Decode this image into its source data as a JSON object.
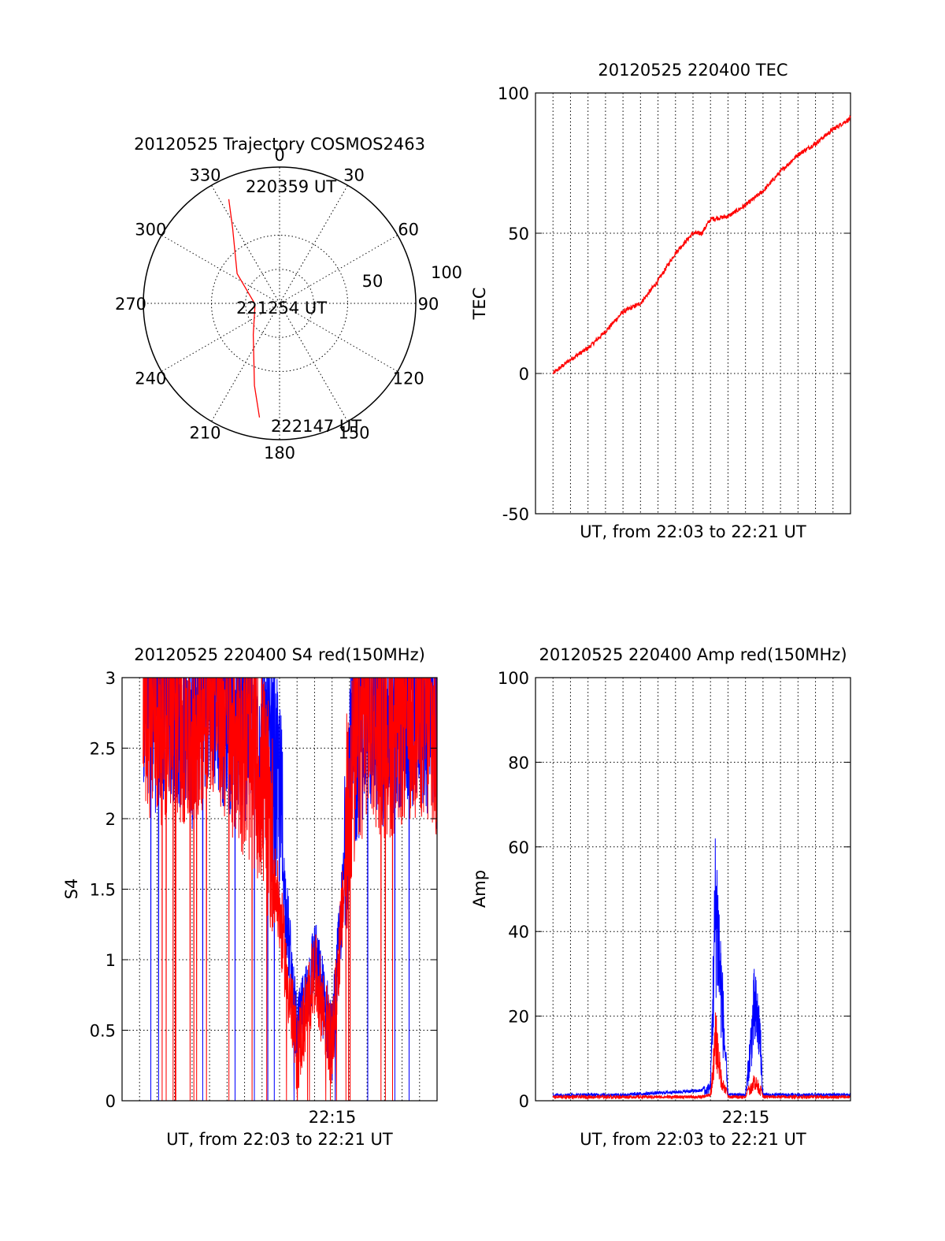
{
  "colors": {
    "red": "#ff0000",
    "blue": "#0000ff",
    "axis": "#000000"
  },
  "chart_data": [
    {
      "id": "trajectory",
      "type": "polar",
      "title": "20120525 Trajectory COSMOS2463",
      "azimuth_labels": [
        "0",
        "30",
        "60",
        "90",
        "120",
        "150",
        "180",
        "210",
        "240",
        "270",
        "300",
        "330"
      ],
      "radial_labels": [
        "50",
        "100"
      ],
      "rlim": [
        0,
        100
      ],
      "annotations": [
        "220359 UT",
        "221254 UT",
        "222147 UT"
      ],
      "series": [
        {
          "color": "red",
          "points": [
            [
              334,
              85
            ],
            [
              328,
              65
            ],
            [
              305,
              38
            ],
            [
              268,
              18
            ],
            [
              220,
              30
            ],
            [
              197,
              63
            ],
            [
              190,
              85
            ]
          ]
        }
      ]
    },
    {
      "id": "tec",
      "type": "line",
      "title": "20120525 220400 TEC",
      "xlabel": "UT, from 22:03 to 22:21 UT",
      "ylabel": "TEC",
      "ylim": [
        -50,
        100
      ],
      "yticks": [
        "100",
        "50",
        "0",
        "-50"
      ],
      "xlim": [
        0,
        18
      ],
      "series": [
        {
          "color": "red",
          "x": [
            1.0,
            2.0,
            3.0,
            4.0,
            5.0,
            6.0,
            7.0,
            8.0,
            9.0,
            9.5,
            10.0,
            11.0,
            12.0,
            13.0,
            14.0,
            15.0,
            16.0,
            17.0,
            18.0
          ],
          "y": [
            0,
            5,
            9,
            15,
            22,
            25,
            33,
            43,
            50,
            50,
            55,
            56,
            60,
            65,
            72,
            78,
            82,
            87,
            91
          ]
        }
      ]
    },
    {
      "id": "s4",
      "type": "line",
      "title": "20120525 220400 S4 red(150MHz)",
      "xlabel": "UT, from 22:03 to 22:21 UT",
      "ylabel": "S4",
      "ylim": [
        0,
        3
      ],
      "yticks": [
        "3",
        "2.5",
        "2",
        "1.5",
        "1",
        "0.5",
        "0"
      ],
      "xticklabels": [
        "22:15"
      ],
      "xlim": [
        0,
        18
      ],
      "series": [
        {
          "color": "blue",
          "x": [
            0,
            1,
            2,
            3,
            4,
            5,
            6,
            7,
            8,
            9,
            10,
            11,
            12,
            13,
            14,
            15,
            16,
            17,
            18
          ],
          "y": [
            2.6,
            2.7,
            2.5,
            2.6,
            2.4,
            2.8,
            2.5,
            2.4,
            2.3,
            1.8,
            0.3,
            0.9,
            0.3,
            2.0,
            2.6,
            2.4,
            2.5,
            2.6,
            2.3
          ]
        },
        {
          "color": "red",
          "x": [
            0,
            1,
            2,
            3,
            4,
            5,
            6,
            7,
            8,
            9,
            10,
            11,
            12,
            13,
            14,
            15,
            16,
            17,
            18
          ],
          "y": [
            2.5,
            2.6,
            2.4,
            2.5,
            2.3,
            2.7,
            2.4,
            2.2,
            2.0,
            1.2,
            0.2,
            0.8,
            0.25,
            1.9,
            2.5,
            2.3,
            2.4,
            2.5,
            2.2
          ]
        }
      ]
    },
    {
      "id": "amp",
      "type": "line",
      "title": "20120525 220400 Amp red(150MHz)",
      "xlabel": "UT, from 22:03 to 22:21 UT",
      "ylabel": "Amp",
      "ylim": [
        0,
        100
      ],
      "yticks": [
        "100",
        "80",
        "60",
        "40",
        "20",
        "0"
      ],
      "xticklabels": [
        "22:15"
      ],
      "xlim": [
        0,
        18
      ],
      "series": [
        {
          "color": "blue",
          "x": [
            1,
            5,
            9.5,
            10,
            10.3,
            10.6,
            11,
            12,
            12.5,
            12.8,
            13,
            14,
            16,
            18
          ],
          "y": [
            1,
            1,
            2,
            5,
            70,
            40,
            1,
            1,
            32,
            25,
            1,
            1,
            1,
            1
          ]
        },
        {
          "color": "red",
          "x": [
            1,
            9.5,
            10,
            10.3,
            10.6,
            11,
            12,
            12.5,
            12.8,
            13,
            18
          ],
          "y": [
            0.5,
            0.5,
            1,
            22,
            8,
            0.5,
            0.5,
            7,
            4,
            0.5,
            0.5
          ]
        }
      ]
    }
  ]
}
